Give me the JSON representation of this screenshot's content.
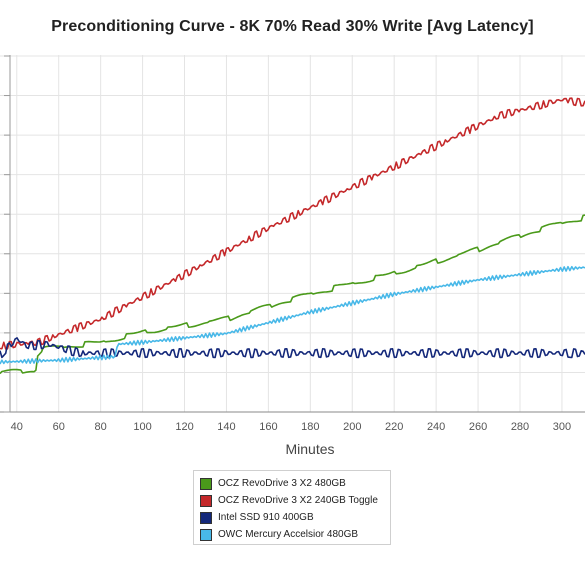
{
  "chart_data": {
    "type": "line",
    "title": "Preconditioning Curve - 8K 70% Read 30% Write [Avg Latency]",
    "xlabel": "Minutes",
    "ylabel": "",
    "x_ticks": [
      40,
      60,
      80,
      100,
      120,
      140,
      160,
      180,
      200,
      220,
      240,
      260,
      280,
      300
    ],
    "xlim": [
      32,
      311
    ],
    "grid": true,
    "legend_position": "bottom-center",
    "series": [
      {
        "name": "OCZ RevoDrive 3 X2 480GB",
        "color": "#4a9a1a",
        "points": [
          [
            32,
            3.6
          ],
          [
            49,
            3.65
          ],
          [
            50,
            4.1
          ],
          [
            52,
            4.25
          ],
          [
            80,
            4.45
          ],
          [
            100,
            4.75
          ],
          [
            140,
            5.1
          ],
          [
            180,
            5.8
          ],
          [
            220,
            6.4
          ],
          [
            260,
            7.05
          ],
          [
            300,
            7.8
          ],
          [
            311,
            7.95
          ]
        ]
      },
      {
        "name": "OCZ RevoDrive 3 X2 240GB Toggle",
        "color": "#c4282a",
        "points": [
          [
            32,
            4.35
          ],
          [
            50,
            4.45
          ],
          [
            80,
            5.1
          ],
          [
            120,
            6.35
          ],
          [
            160,
            7.65
          ],
          [
            200,
            8.8
          ],
          [
            240,
            9.95
          ],
          [
            270,
            10.8
          ],
          [
            300,
            11.25
          ],
          [
            311,
            11.15
          ]
        ]
      },
      {
        "name": "Intel SSD 910 400GB",
        "color": "#14287a",
        "points": [
          [
            32,
            4.1
          ],
          [
            40,
            4.55
          ],
          [
            45,
            4.35
          ],
          [
            55,
            4.4
          ],
          [
            70,
            4.15
          ],
          [
            100,
            4.15
          ],
          [
            140,
            4.15
          ],
          [
            180,
            4.15
          ],
          [
            220,
            4.15
          ],
          [
            260,
            4.15
          ],
          [
            311,
            4.15
          ]
        ]
      },
      {
        "name": "OWC Mercury Accelsior 480GB",
        "color": "#48b8e8",
        "points": [
          [
            32,
            3.9
          ],
          [
            60,
            3.95
          ],
          [
            87,
            4.05
          ],
          [
            88,
            4.4
          ],
          [
            100,
            4.45
          ],
          [
            140,
            4.7
          ],
          [
            180,
            5.3
          ],
          [
            220,
            5.8
          ],
          [
            260,
            6.2
          ],
          [
            300,
            6.5
          ],
          [
            311,
            6.55
          ]
        ]
      }
    ]
  }
}
